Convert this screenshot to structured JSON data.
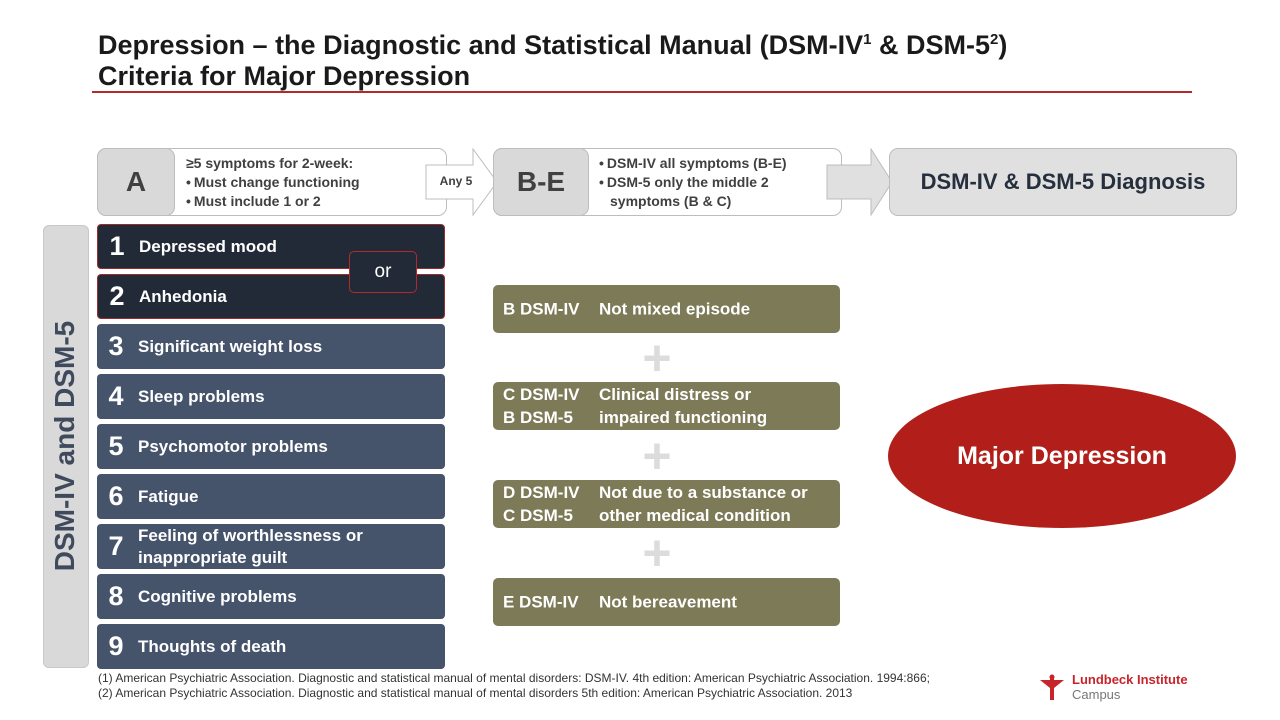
{
  "title": {
    "line1_pre": "Depression – the Diagnostic and Statistical Manual (DSM-IV",
    "sup1": "1",
    "line1_mid": " & DSM-5",
    "sup2": "2",
    "line1_post": ")",
    "line2": "Criteria for Major Depression"
  },
  "header": {
    "a_letter": "A",
    "a_heading": "≥5 symptoms for 2-week:",
    "a_bullets": [
      "Must  change functioning",
      "Must include 1 or 2"
    ],
    "arrow1_label": "Any 5",
    "be_letter": "B-E",
    "be_bullets": [
      "DSM-IV all symptoms (B-E)",
      "DSM-5 only the middle 2 symptoms (B & C)"
    ],
    "diagnosis": "DSM-IV & DSM-5 Diagnosis"
  },
  "side_label": "DSM-IV and DSM-5",
  "or_label": "or",
  "symptoms": [
    {
      "num": "1",
      "label": "Depressed mood"
    },
    {
      "num": "2",
      "label": "Anhedonia"
    },
    {
      "num": "3",
      "label": "Significant weight loss"
    },
    {
      "num": "4",
      "label": "Sleep problems"
    },
    {
      "num": "5",
      "label": "Psychomotor problems"
    },
    {
      "num": "6",
      "label": "Fatigue"
    },
    {
      "num": "7",
      "label": "Feeling of worthlessness or inappropriate guilt"
    },
    {
      "num": "8",
      "label": "Cognitive problems"
    },
    {
      "num": "9",
      "label": "Thoughts of death"
    }
  ],
  "criteria": [
    {
      "codes": "B DSM-IV",
      "text": "Not mixed episode"
    },
    {
      "codes": "C DSM-IV\nB DSM-5",
      "text": "Clinical distress or\nimpaired functioning"
    },
    {
      "codes": "D DSM-IV\nC DSM-5",
      "text": "Not due to a substance or\nother medical condition"
    },
    {
      "codes": "E DSM-IV",
      "text": "Not bereavement"
    }
  ],
  "plus_sign": "+",
  "outcome": "Major Depression",
  "footnotes": [
    "(1) American Psychiatric Association. Diagnostic and statistical manual of mental disorders: DSM-IV. 4th edition:  American Psychiatric Association. 1994:866;",
    "(2) American Psychiatric Association. Diagnostic and statistical manual of mental disorders 5th edition:  American Psychiatric Association. 2013"
  ],
  "logo": {
    "line1": "Lundbeck Institute",
    "line2": "Campus"
  },
  "colors": {
    "symptom_blue": "#45536b",
    "symptom_dark": "#222a38",
    "criteria_olive": "#7d7a57",
    "accent_red": "#b21f1a"
  }
}
